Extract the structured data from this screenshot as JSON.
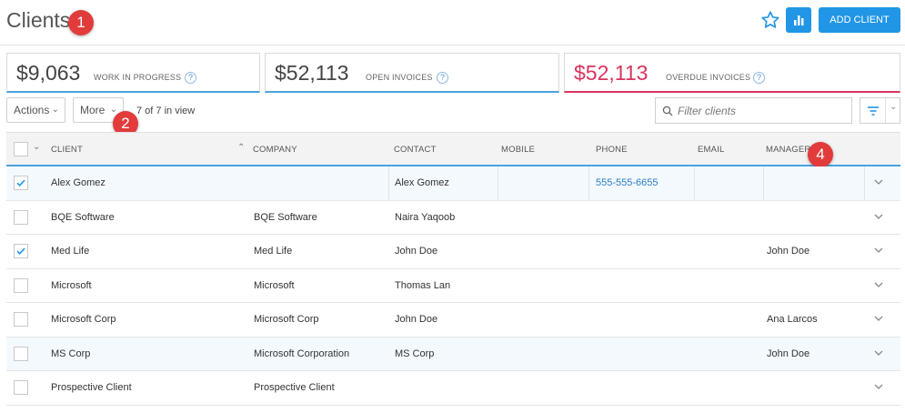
{
  "header": {
    "title": "Clients",
    "add_button": "ADD CLIENT",
    "star_icon": "star-icon",
    "chart_icon": "bar-chart-icon"
  },
  "badges": [
    "1",
    "2",
    "4"
  ],
  "stats": [
    {
      "value": "$9,063",
      "label": "WORK IN PROGRESS"
    },
    {
      "value": "$52,113",
      "label": "OPEN INVOICES"
    },
    {
      "value": "$52,113",
      "label": "OVERDUE INVOICES"
    }
  ],
  "toolbar": {
    "actions_label": "Actions",
    "more_label": "More",
    "count_text": "7 of 7 in view",
    "filter_placeholder": "Filter clients"
  },
  "columns": {
    "client": "CLIENT",
    "company": "COMPANY",
    "contact": "CONTACT",
    "mobile": "MOBILE",
    "phone": "PHONE",
    "email": "EMAIL",
    "manager": "MANAGER"
  },
  "rows": [
    {
      "checked": true,
      "client": "Alex Gomez",
      "company": "",
      "contact": "Alex Gomez",
      "mobile": "",
      "phone": "555-555-6655",
      "email": "",
      "manager": ""
    },
    {
      "checked": false,
      "client": "BQE Software",
      "company": "BQE Software",
      "contact": "Naira Yaqoob",
      "mobile": "",
      "phone": "",
      "email": "",
      "manager": ""
    },
    {
      "checked": true,
      "client": "Med Life",
      "company": "Med Life",
      "contact": "John Doe",
      "mobile": "",
      "phone": "",
      "email": "",
      "manager": "John Doe"
    },
    {
      "checked": false,
      "client": "Microsoft",
      "company": "Microsoft",
      "contact": "Thomas Lan",
      "mobile": "",
      "phone": "",
      "email": "",
      "manager": ""
    },
    {
      "checked": false,
      "client": "Microsoft Corp",
      "company": "Microsoft Corp",
      "contact": "John Doe",
      "mobile": "",
      "phone": "",
      "email": "",
      "manager": "Ana Larcos"
    },
    {
      "checked": false,
      "client": "MS Corp",
      "company": "Microsoft Corporation",
      "contact": "MS Corp",
      "mobile": "",
      "phone": "",
      "email": "",
      "manager": "John Doe"
    },
    {
      "checked": false,
      "client": "Prospective Client",
      "company": "Prospective Client",
      "contact": "",
      "mobile": "",
      "phone": "",
      "email": "",
      "manager": ""
    }
  ],
  "colors": {
    "accent": "#2196e6",
    "overdue": "#d9345f",
    "badge": "#e23b3b"
  }
}
